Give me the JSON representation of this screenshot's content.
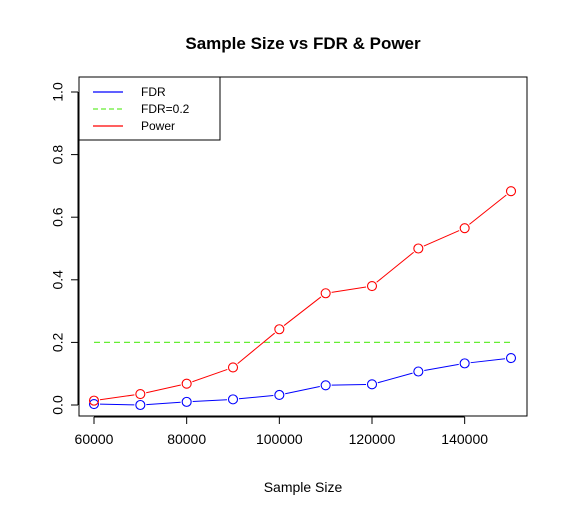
{
  "chart_data": {
    "type": "line",
    "title": "Sample Size vs FDR & Power",
    "xlabel": "Sample Size",
    "ylabel": "",
    "xlim": [
      60000,
      150000
    ],
    "ylim": [
      0,
      1
    ],
    "x_ticks": [
      60000,
      80000,
      100000,
      120000,
      140000
    ],
    "y_ticks": [
      0.0,
      0.2,
      0.4,
      0.6,
      0.8,
      1.0
    ],
    "x_tick_labels": [
      "60000",
      "80000",
      "100000",
      "120000",
      "140000"
    ],
    "y_tick_labels": [
      "0.0",
      "0.2",
      "0.4",
      "0.6",
      "0.8",
      "1.0"
    ],
    "grid": false,
    "legend_position": "top-left",
    "x": [
      60000,
      70000,
      80000,
      90000,
      100000,
      110000,
      120000,
      130000,
      140000,
      150000
    ],
    "series": [
      {
        "name": "FDR",
        "color": "#0000ff",
        "style": "solid",
        "markers": true,
        "values": [
          0.003,
          0.0,
          0.01,
          0.018,
          0.032,
          0.063,
          0.066,
          0.107,
          0.133,
          0.15
        ]
      },
      {
        "name": "FDR=0.2",
        "color": "#66ee33",
        "style": "dashed",
        "markers": false,
        "values": [
          0.2,
          0.2,
          0.2,
          0.2,
          0.2,
          0.2,
          0.2,
          0.2,
          0.2,
          0.2
        ]
      },
      {
        "name": "Power",
        "color": "#ff0000",
        "style": "solid",
        "markers": true,
        "values": [
          0.014,
          0.035,
          0.068,
          0.12,
          0.242,
          0.357,
          0.38,
          0.5,
          0.565,
          0.683
        ]
      }
    ]
  }
}
